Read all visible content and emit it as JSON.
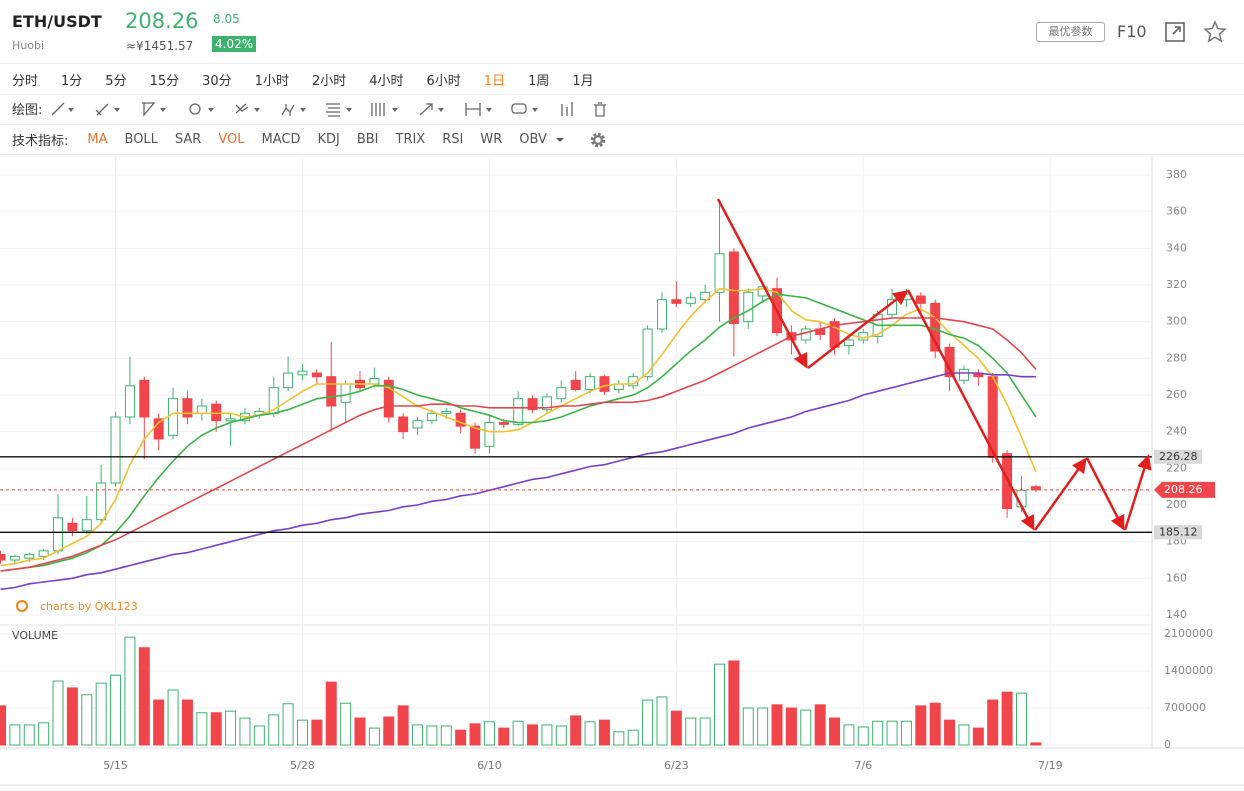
{
  "header": {
    "symbol": "ETH/USDT",
    "exchange": "Huobi",
    "price": "208.26",
    "price_cny": "≈¥1451.57",
    "change": "8.05",
    "change_pct": "4.02%",
    "params_button": "最优参数",
    "f10": "F10"
  },
  "toolbar": {
    "timeframes": [
      "分时",
      "1分",
      "5分",
      "15分",
      "30分",
      "1小时",
      "2小时",
      "4小时",
      "6小时",
      "1日",
      "1周",
      "1月"
    ],
    "active_timeframe": 9,
    "draw_label": "绘图:",
    "indicator_label": "技术指标:",
    "indicators": [
      "MA",
      "BOLL",
      "SAR",
      "VOL",
      "MACD",
      "KDJ",
      "BBI",
      "TRIX",
      "RSI",
      "WR",
      "OBV"
    ],
    "active_indicators": [
      0,
      3
    ]
  },
  "watermark": "charts by QKL123",
  "chart_data": [
    {
      "type": "candlestick",
      "up_color": "#3eb370",
      "down_color": "#f0464b",
      "categories": [
        null,
        null,
        null,
        null,
        null,
        null,
        null,
        null,
        "5/15",
        null,
        null,
        null,
        null,
        null,
        null,
        null,
        null,
        null,
        null,
        null,
        null,
        "5/28",
        null,
        null,
        null,
        null,
        null,
        null,
        null,
        null,
        null,
        null,
        null,
        null,
        "6/10",
        null,
        null,
        null,
        null,
        null,
        null,
        null,
        null,
        null,
        null,
        null,
        null,
        "6/23",
        null,
        null,
        null,
        null,
        null,
        null,
        null,
        null,
        null,
        null,
        null,
        null,
        "7/6",
        null,
        null,
        null,
        null,
        null,
        null,
        null,
        null,
        null,
        null,
        null,
        null,
        "7/19",
        null,
        null,
        null,
        null,
        null,
        null
      ],
      "open": [
        173,
        170,
        171,
        172,
        175,
        190,
        186,
        192,
        212,
        248,
        268,
        247,
        238,
        258,
        250,
        255,
        246,
        246,
        249,
        250,
        264,
        271,
        272,
        270,
        256,
        268,
        266,
        268,
        248,
        242,
        246,
        250,
        250,
        243,
        232,
        245,
        244,
        258,
        252,
        258,
        268,
        263,
        270,
        263,
        265,
        270,
        296,
        312,
        310,
        312,
        316,
        338,
        300,
        314,
        318,
        294,
        290,
        296,
        300,
        287,
        290,
        292,
        304,
        312,
        314,
        310,
        286,
        268,
        272,
        270,
        228,
        199,
        210,
        null,
        null,
        null,
        null,
        null,
        null,
        null
      ],
      "high": [
        175,
        173,
        174,
        176,
        206,
        193,
        205,
        222,
        251,
        281,
        270,
        250,
        264,
        262,
        258,
        257,
        250,
        253,
        253,
        270,
        281,
        277,
        274,
        289,
        268,
        273,
        275,
        270,
        250,
        248,
        252,
        253,
        252,
        245,
        249,
        247,
        262,
        260,
        261,
        268,
        273,
        272,
        271,
        268,
        272,
        298,
        316,
        322,
        316,
        320,
        366,
        340,
        318,
        322,
        324,
        298,
        298,
        300,
        302,
        292,
        296,
        306,
        318,
        318,
        316,
        312,
        288,
        276,
        274,
        272,
        230,
        216,
        211,
        null,
        null,
        null,
        null,
        null,
        null,
        null
      ],
      "low": [
        168,
        168,
        169,
        170,
        173,
        183,
        184,
        190,
        210,
        244,
        225,
        230,
        236,
        244,
        246,
        240,
        232,
        244,
        247,
        248,
        262,
        268,
        266,
        240,
        245,
        262,
        264,
        245,
        236,
        238,
        244,
        247,
        239,
        228,
        228,
        242,
        243,
        250,
        250,
        256,
        262,
        261,
        260,
        261,
        263,
        268,
        294,
        308,
        308,
        310,
        300,
        281,
        296,
        310,
        292,
        282,
        288,
        290,
        282,
        282,
        288,
        288,
        302,
        308,
        305,
        280,
        262,
        266,
        265,
        223,
        193,
        196,
        207,
        null,
        null,
        null,
        null,
        null,
        null,
        null
      ],
      "close": [
        170,
        172,
        173,
        175,
        193,
        186,
        192,
        212,
        248,
        265,
        248,
        236,
        258,
        248,
        254,
        246,
        247,
        250,
        251,
        264,
        272,
        273,
        270,
        254,
        266,
        264,
        269,
        248,
        240,
        246,
        250,
        251,
        243,
        231,
        245,
        244,
        258,
        252,
        259,
        264,
        263,
        270,
        262,
        266,
        270,
        296,
        312,
        310,
        313,
        316,
        337,
        299,
        316,
        319,
        294,
        290,
        296,
        293,
        286,
        290,
        294,
        304,
        312,
        315,
        310,
        284,
        270,
        274,
        270,
        226,
        198,
        208,
        208.26,
        null,
        null,
        null,
        null,
        null,
        null,
        null
      ],
      "series": [
        {
          "color": "#f3c12e",
          "values": [
            167,
            168,
            170,
            171,
            175,
            179,
            183,
            190,
            203,
            222,
            236,
            245,
            250,
            250,
            250,
            250,
            250,
            248,
            249,
            252,
            257,
            262,
            266,
            266,
            266,
            266,
            266,
            264,
            259,
            254,
            251,
            248,
            245,
            242,
            240,
            240,
            241,
            245,
            250,
            254,
            258,
            262,
            265,
            266,
            266,
            272,
            282,
            293,
            303,
            311,
            318,
            317,
            317,
            318,
            316,
            306,
            301,
            300,
            297,
            293,
            291,
            293,
            298,
            304,
            307,
            302,
            294,
            287,
            280,
            270,
            255,
            237,
            218,
            null,
            null,
            null,
            null,
            null,
            null,
            null
          ]
        },
        {
          "color": "#3cb44b",
          "values": [
            164,
            165,
            166,
            167,
            169,
            171,
            174,
            178,
            185,
            194,
            205,
            215,
            224,
            232,
            238,
            242,
            245,
            247,
            249,
            250,
            252,
            255,
            258,
            259,
            260,
            262,
            265,
            265,
            263,
            260,
            258,
            256,
            253,
            251,
            249,
            246,
            245,
            245,
            246,
            248,
            251,
            254,
            256,
            258,
            260,
            264,
            270,
            277,
            284,
            290,
            297,
            302,
            306,
            311,
            315,
            314,
            313,
            310,
            307,
            304,
            301,
            298,
            298,
            298,
            298,
            296,
            293,
            291,
            287,
            280,
            272,
            260,
            248,
            null,
            null,
            null,
            null,
            null,
            null,
            null
          ]
        },
        {
          "color": "#e0484f",
          "values": [
            164,
            165,
            166,
            168,
            170,
            172,
            175,
            178,
            181,
            185,
            189,
            193,
            197,
            201,
            205,
            209,
            213,
            217,
            221,
            225,
            229,
            233,
            237,
            241,
            245,
            249,
            252,
            254,
            254,
            254,
            255,
            255,
            254,
            254,
            253,
            253,
            253,
            253,
            253,
            254,
            254,
            255,
            256,
            256,
            256,
            257,
            259,
            262,
            265,
            268,
            272,
            276,
            280,
            284,
            288,
            292,
            294,
            296,
            298,
            299,
            300,
            301,
            302,
            302,
            302,
            302,
            301,
            300,
            298,
            296,
            290,
            283,
            274,
            null,
            null,
            null,
            null,
            null,
            null,
            null
          ]
        },
        {
          "color": "#7b3fc4",
          "values": [
            154,
            155,
            157,
            158,
            159,
            160,
            162,
            163,
            165,
            167,
            169,
            171,
            173,
            174,
            176,
            178,
            180,
            182,
            184,
            186,
            187,
            189,
            190,
            192,
            193,
            195,
            196,
            197,
            199,
            200,
            202,
            203,
            205,
            206,
            208,
            210,
            212,
            214,
            215,
            217,
            219,
            221,
            222,
            224,
            226,
            228,
            229,
            231,
            233,
            235,
            237,
            239,
            242,
            244,
            246,
            248,
            251,
            253,
            255,
            257,
            260,
            262,
            264,
            266,
            268,
            270,
            272,
            272,
            272,
            271,
            271,
            270,
            270,
            null,
            null,
            null,
            null,
            null,
            null,
            null
          ]
        }
      ],
      "ylim": [
        140,
        380
      ],
      "yticks": [
        140,
        160,
        180,
        200,
        220,
        240,
        260,
        280,
        300,
        320,
        340,
        360,
        380
      ],
      "grid": true,
      "levels": [
        226.28,
        185.12
      ],
      "last_price": 208.26
    },
    {
      "type": "bar",
      "title": "VOLUME",
      "values": [
        740000,
        380000,
        380000,
        420000,
        1210000,
        1080000,
        950000,
        1170000,
        1320000,
        2040000,
        1840000,
        850000,
        1040000,
        850000,
        610000,
        610000,
        640000,
        510000,
        360000,
        570000,
        780000,
        470000,
        470000,
        1190000,
        790000,
        510000,
        320000,
        530000,
        740000,
        380000,
        360000,
        360000,
        280000,
        400000,
        440000,
        320000,
        450000,
        380000,
        380000,
        360000,
        550000,
        440000,
        470000,
        250000,
        280000,
        850000,
        910000,
        640000,
        510000,
        510000,
        1530000,
        1590000,
        700000,
        700000,
        760000,
        700000,
        660000,
        760000,
        510000,
        380000,
        340000,
        450000,
        450000,
        450000,
        740000,
        790000,
        470000,
        380000,
        320000,
        850000,
        1000000,
        980000,
        40000,
        null,
        null,
        null,
        null,
        null,
        null,
        null
      ],
      "ylim": [
        0,
        2100000
      ],
      "yticks": [
        0,
        700000,
        1400000,
        2100000
      ]
    }
  ]
}
